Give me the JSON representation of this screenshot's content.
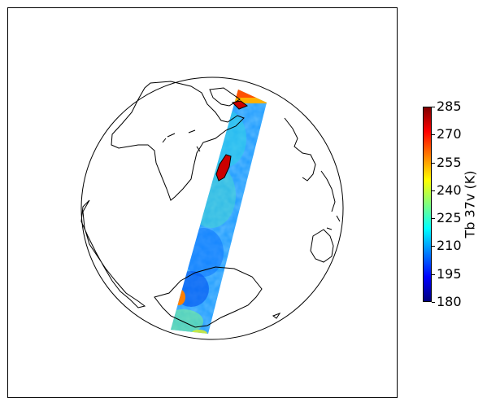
{
  "colorbar": {
    "label": "Tb 37v (K)",
    "min": 180,
    "max": 285,
    "ticks": [
      "180",
      "195",
      "210",
      "225",
      "240",
      "255",
      "270",
      "285"
    ],
    "colormap": "jet",
    "colors": [
      "#00007f",
      "#0000ff",
      "#007fff",
      "#00ffff",
      "#7fff7f",
      "#ffff00",
      "#ff7f00",
      "#ff0000",
      "#7f0000"
    ]
  },
  "map": {
    "projection": "orthographic",
    "coastline_color": "#000000",
    "land_fill_in_swath": "#cc0000"
  }
}
